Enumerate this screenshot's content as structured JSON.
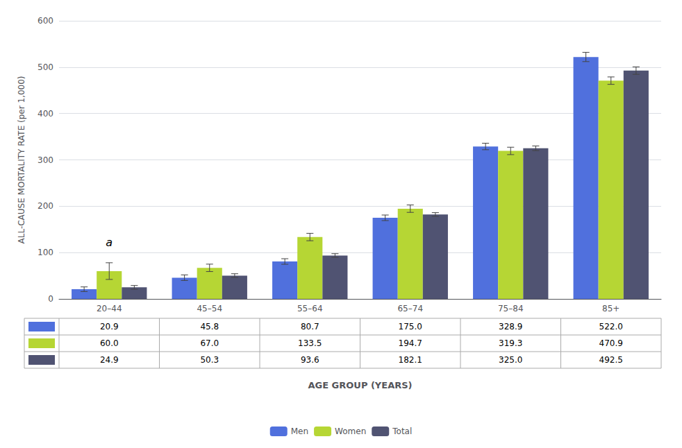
{
  "chart_data": {
    "type": "bar",
    "categories": [
      "20–44",
      "45–54",
      "55–64",
      "65–74",
      "75–84",
      "85+"
    ],
    "series": [
      {
        "name": "Men",
        "values": [
          20.9,
          45.8,
          80.7,
          175.0,
          328.9,
          522.0
        ],
        "value_labels": [
          "20.9",
          "45.8",
          "80.7",
          "175.0",
          "328.9",
          "522.0"
        ],
        "errors": [
          5.0,
          6.0,
          6.0,
          6.0,
          7.0,
          10.0
        ]
      },
      {
        "name": "Women",
        "values": [
          60.0,
          67.0,
          133.5,
          194.7,
          319.3,
          470.9
        ],
        "value_labels": [
          "60.0",
          "67.0",
          "133.5",
          "194.7",
          "319.3",
          "470.9"
        ],
        "errors": [
          18.0,
          8.0,
          8.0,
          8.0,
          8.0,
          8.0
        ]
      },
      {
        "name": "Total",
        "values": [
          24.9,
          50.3,
          93.6,
          182.1,
          325.0,
          492.5
        ],
        "value_labels": [
          "24.9",
          "50.3",
          "93.6",
          "182.1",
          "325.0",
          "492.5"
        ],
        "errors": [
          4.0,
          4.0,
          4.0,
          4.0,
          5.0,
          8.0
        ]
      }
    ],
    "xlabel": "AGE GROUP (YEARS)",
    "ylabel": "ALL-CAUSE MORTALITY RATE (per 1,000)",
    "ylim": [
      0,
      600
    ],
    "yticks": [
      0,
      100,
      200,
      300,
      400,
      500,
      600
    ],
    "grid": true,
    "legend": "bottom",
    "annotations": [
      {
        "text": "a",
        "category": "20–44",
        "y": 110
      }
    ]
  }
}
